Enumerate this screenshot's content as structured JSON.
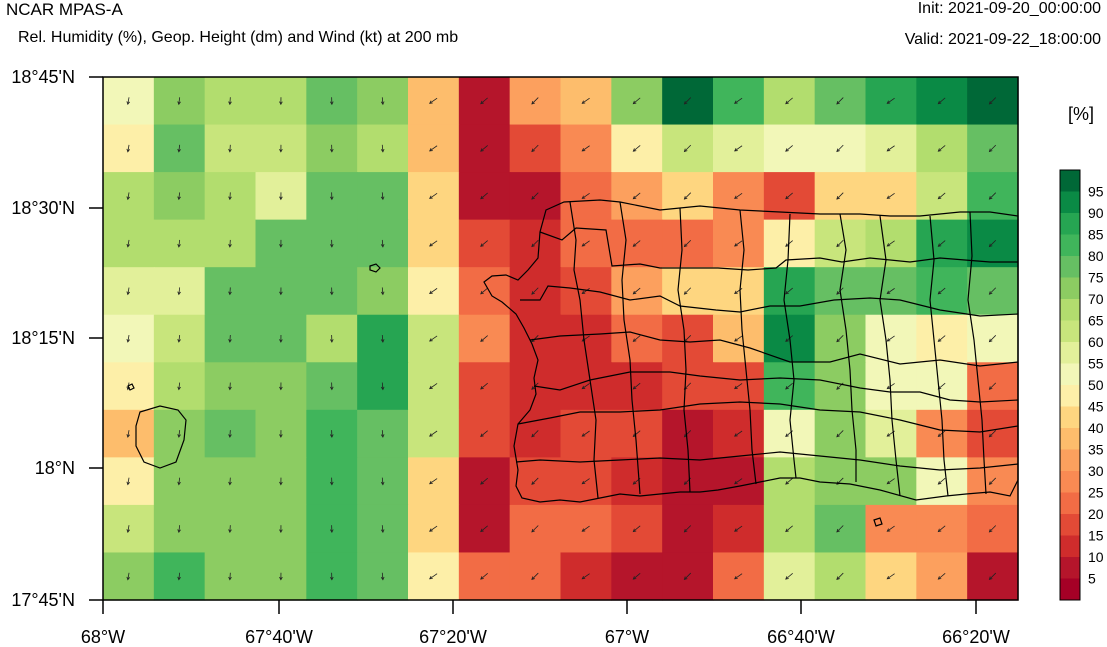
{
  "header": {
    "title": "NCAR MPAS-A",
    "subtitle": "Rel. Humidity (%), Geop. Height (dm) and Wind (kt) at 200 mb",
    "init": "Init: 2021-09-20_00:00:00",
    "valid": "Valid: 2021-09-22_18:00:00"
  },
  "map": {
    "lat_labels": [
      "18°45'N",
      "18°30'N",
      "18°15'N",
      "18°N",
      "17°45'N"
    ],
    "lon_labels": [
      "68°W",
      "67°40'W",
      "67°20'W",
      "67°W",
      "66°40'W",
      "66°20'W"
    ],
    "lon_range_deg": [
      -68.0,
      -66.27
    ],
    "lat_range_deg": [
      17.75,
      18.75
    ]
  },
  "colorbar": {
    "unit": "[%]",
    "labels": [
      "95",
      "90",
      "85",
      "80",
      "75",
      "70",
      "65",
      "60",
      "55",
      "50",
      "45",
      "40",
      "35",
      "30",
      "25",
      "20",
      "15",
      "10",
      "5"
    ],
    "colors": [
      "#006837",
      "#0a8a45",
      "#26a552",
      "#40b55b",
      "#66bf63",
      "#8ccc62",
      "#b2dd6e",
      "#c8e57c",
      "#e2f09a",
      "#f2f7b8",
      "#fdefa8",
      "#fed680",
      "#fdbd6c",
      "#fca05e",
      "#f98a53",
      "#f26c45",
      "#e34a36",
      "#cf2c2c",
      "#b5152b",
      "#a50026"
    ]
  },
  "wind_barb_direction": "from the north-east to north"
}
